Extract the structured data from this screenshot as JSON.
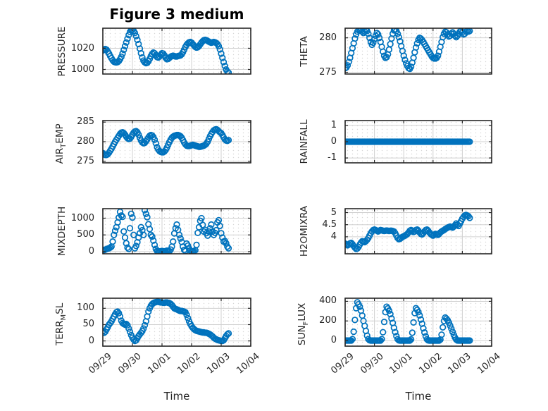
{
  "figure": {
    "title": "Figure 3 medium",
    "xlabel": "Time",
    "marker": "circle",
    "marker_color": "#0072BD",
    "axes_color": "#262626",
    "grid_color": "#d0d0d0",
    "minor_dot_color": "#d7d7d7",
    "background": "#ffffff"
  },
  "time_axis": {
    "lim_hours": [
      0,
      120
    ],
    "tick_hours": [
      0,
      24,
      48,
      72,
      96,
      120
    ],
    "tick_labels": [
      "09/29",
      "09/30",
      "10/01",
      "10/02",
      "10/03",
      "10/04"
    ]
  },
  "chart_data": [
    {
      "id": "pressure",
      "type": "scatter",
      "grid_position": [
        0,
        0
      ],
      "ylabel": "PRESSURE",
      "ylabel_parts": [
        {
          "text": "PRESSURE"
        }
      ],
      "ylim": [
        995.7,
        1039
      ],
      "yticks": [
        {
          "v": 1000,
          "label": "1000"
        },
        {
          "v": 1020,
          "label": "1020"
        }
      ],
      "t_start_hours": 0,
      "t_step_hours": 1,
      "show_x_labels": false,
      "values": [
        1018,
        1018.7,
        1019.3,
        1018.7,
        1017,
        1015,
        1012.7,
        1010.7,
        1008.7,
        1007.3,
        1006.8,
        1006.7,
        1007,
        1008,
        1009.7,
        1012,
        1015,
        1018.5,
        1022,
        1025.5,
        1029,
        1032.5,
        1035.5,
        1037.3,
        1037.5,
        1036.5,
        1034.5,
        1031.5,
        1028,
        1024,
        1019.7,
        1015.3,
        1011.3,
        1008.3,
        1006.7,
        1006,
        1006.3,
        1007.7,
        1010,
        1012.7,
        1014.7,
        1016,
        1015.3,
        1013.3,
        1011.7,
        1011.3,
        1012.3,
        1014,
        1015.3,
        1015,
        1013.3,
        1011,
        1009.7,
        1010,
        1011,
        1012,
        1012.7,
        1013,
        1012.7,
        1012.3,
        1012.3,
        1012.7,
        1013,
        1013.3,
        1014.3,
        1016.3,
        1018.7,
        1021.3,
        1023.3,
        1024.7,
        1025.7,
        1026,
        1025.3,
        1024,
        1022.7,
        1021.3,
        1020.7,
        1021,
        1022,
        1023.7,
        1025.3,
        1026.7,
        1027.7,
        1028,
        1027.7,
        1027,
        1026.3,
        1025.7,
        1025.3,
        1025.7,
        1026,
        1025.7,
        1025,
        1024,
        1022,
        1019,
        1015,
        1011,
        1007,
        1003.3,
        1000,
        998,
        997
      ]
    },
    {
      "id": "theta",
      "type": "scatter",
      "grid_position": [
        0,
        1
      ],
      "ylabel": "THETA",
      "ylabel_parts": [
        {
          "text": "THETA"
        }
      ],
      "ylim": [
        274.75,
        281.4
      ],
      "yticks": [
        {
          "v": 275,
          "label": "275"
        },
        {
          "v": 280,
          "label": "280"
        }
      ],
      "t_start_hours": 0,
      "t_step_hours": 1,
      "show_x_labels": false,
      "values": [
        275.6,
        275.7,
        276,
        276.5,
        277.1,
        277.8,
        278.5,
        279.2,
        279.9,
        280.5,
        280.9,
        281.1,
        281.2,
        281.1,
        280.9,
        280.7,
        280.9,
        281.1,
        281,
        280.6,
        280,
        279.4,
        279,
        279.3,
        279.8,
        280.3,
        280.7,
        280.5,
        280,
        279.4,
        278.7,
        278,
        277.4,
        277.1,
        277.2,
        277.6,
        278.3,
        279.1,
        279.9,
        280.6,
        281.1,
        281.2,
        281,
        280.6,
        280.1,
        279.5,
        278.8,
        278.1,
        277.4,
        276.8,
        276.3,
        275.9,
        275.6,
        275.5,
        275.8,
        276.4,
        277.1,
        277.9,
        278.6,
        279.2,
        279.7,
        280,
        279.9,
        279.7,
        279.4,
        279.1,
        278.8,
        278.5,
        278.2,
        277.9,
        277.6,
        277.3,
        277.1,
        277,
        277,
        277.1,
        277.4,
        278,
        278.7,
        279.4,
        280.1,
        280.6,
        280.9,
        280.8,
        280.5,
        280.2,
        280.3,
        280.6,
        280.8,
        280.6,
        280.3,
        280.1,
        280.3,
        280.6,
        280.9,
        281,
        280.8,
        280.5,
        280.6,
        280.9,
        281,
        280.9,
        281
      ]
    },
    {
      "id": "air-temp",
      "type": "scatter",
      "grid_position": [
        1,
        0
      ],
      "ylabel": "AIR_TEMP",
      "ylabel_parts": [
        {
          "text": "AIR"
        },
        {
          "sub": "T"
        },
        {
          "text": "EMP"
        }
      ],
      "ylim": [
        274.6,
        285.4
      ],
      "yticks": [
        {
          "v": 275,
          "label": "275"
        },
        {
          "v": 280,
          "label": "280"
        },
        {
          "v": 285,
          "label": "285"
        }
      ],
      "t_start_hours": 0,
      "t_step_hours": 1,
      "show_x_labels": false,
      "values": [
        277.1,
        276.8,
        276.6,
        276.6,
        276.8,
        277.2,
        277.7,
        278.2,
        278.8,
        279.4,
        280,
        280.5,
        281,
        281.5,
        282,
        282.3,
        282.4,
        282.2,
        281.8,
        281.3,
        280.9,
        280.7,
        280.8,
        281.2,
        281.8,
        282.3,
        282.6,
        282.7,
        282.4,
        281.8,
        281,
        280.3,
        279.8,
        279.6,
        279.7,
        280.1,
        280.6,
        281.1,
        281.5,
        281.7,
        281.6,
        281.2,
        280.5,
        279.6,
        278.6,
        278,
        277.6,
        277.4,
        277.3,
        277.3,
        277.5,
        277.9,
        278.5,
        279.2,
        279.9,
        280.5,
        281,
        281.3,
        281.5,
        281.6,
        281.7,
        281.7,
        281.6,
        281.4,
        281,
        280.4,
        279.8,
        279.3,
        279,
        278.9,
        278.9,
        279,
        279.1,
        279.2,
        279.1,
        279,
        278.9,
        278.8,
        278.7,
        278.7,
        278.8,
        278.9,
        279,
        279.2,
        279.5,
        280,
        280.7,
        281.4,
        282,
        282.5,
        282.9,
        283.1,
        283.2,
        283,
        282.7,
        282.4,
        282.2,
        281.7,
        281.1,
        280.6,
        280.3,
        280.2,
        280.4
      ]
    },
    {
      "id": "rainfall",
      "type": "scatter",
      "grid_position": [
        1,
        1
      ],
      "ylabel": "RAINFALL",
      "ylabel_parts": [
        {
          "text": "RAINFALL"
        }
      ],
      "ylim": [
        -1.3,
        1.3
      ],
      "yticks": [
        {
          "v": -1,
          "label": "-1"
        },
        {
          "v": 0,
          "label": "0"
        },
        {
          "v": 1,
          "label": "1"
        }
      ],
      "t_start_hours": 0,
      "t_step_hours": 1,
      "show_x_labels": false,
      "values_constant": 0,
      "n_points": 103
    },
    {
      "id": "mixdepth",
      "type": "scatter",
      "grid_position": [
        2,
        0
      ],
      "ylabel": "MIXDEPTH",
      "ylabel_parts": [
        {
          "text": "MIXDEPTH"
        }
      ],
      "ylim": [
        -65,
        1285
      ],
      "yticks": [
        {
          "v": 0,
          "label": "0"
        },
        {
          "v": 500,
          "label": "500"
        },
        {
          "v": 1000,
          "label": "1000"
        }
      ],
      "t_start_hours": 0,
      "t_step_hours": 1,
      "show_x_labels": false,
      "values": [
        30,
        50,
        60,
        75,
        90,
        100,
        120,
        150,
        300,
        500,
        625,
        730,
        875,
        1020,
        1190,
        1080,
        1040,
        604,
        420,
        250,
        120,
        80,
        700,
        1130,
        1020,
        500,
        100,
        170,
        280,
        420,
        550,
        730,
        640,
        500,
        1240,
        1130,
        1030,
        820,
        675,
        500,
        450,
        330,
        200,
        80,
        20,
        10,
        5,
        10,
        20,
        10,
        5,
        15,
        30,
        20,
        10,
        60,
        150,
        300,
        545,
        700,
        810,
        650,
        500,
        395,
        290,
        150,
        50,
        20,
        240,
        180,
        90,
        30,
        10,
        5,
        15,
        40,
        200,
        560,
        730,
        920,
        1000,
        800,
        600,
        650,
        550,
        480,
        600,
        700,
        810,
        600,
        500,
        560,
        640,
        875,
        940,
        770,
        550,
        420,
        300,
        320,
        250,
        150,
        100
      ]
    },
    {
      "id": "h2omixra",
      "type": "scatter",
      "grid_position": [
        2,
        1
      ],
      "ylabel": "H2OMIXRA",
      "ylabel_parts": [
        {
          "text": "H2OMIXRA"
        }
      ],
      "ylim": [
        3.3,
        5.16
      ],
      "yticks": [
        {
          "v": 4,
          "label": "4"
        },
        {
          "v": 4.5,
          "label": "4.5"
        },
        {
          "v": 5,
          "label": "5"
        }
      ],
      "t_start_hours": 0,
      "t_step_hours": 1,
      "show_x_labels": false,
      "values": [
        3.72,
        3.68,
        3.65,
        3.68,
        3.73,
        3.75,
        3.7,
        3.62,
        3.55,
        3.5,
        3.52,
        3.58,
        3.68,
        3.76,
        3.82,
        3.8,
        3.78,
        3.82,
        3.88,
        3.95,
        4.05,
        4.15,
        4.22,
        4.28,
        4.3,
        4.28,
        4.25,
        4.22,
        4.25,
        4.28,
        4.27,
        4.25,
        4.24,
        4.25,
        4.26,
        4.25,
        4.24,
        4.25,
        4.25,
        4.24,
        4.22,
        4.15,
        4.05,
        3.95,
        3.9,
        3.92,
        3.96,
        4,
        4.02,
        4.05,
        4.08,
        4.12,
        4.18,
        4.25,
        4.28,
        4.25,
        4.2,
        4.22,
        4.28,
        4.3,
        4.25,
        4.18,
        4.12,
        4.1,
        4.15,
        4.22,
        4.28,
        4.3,
        4.25,
        4.18,
        4.12,
        4.08,
        4.05,
        4.08,
        4.12,
        4.1,
        4.08,
        4.12,
        4.18,
        4.22,
        4.25,
        4.28,
        4.32,
        4.35,
        4.38,
        4.4,
        4.42,
        4.4,
        4.38,
        4.42,
        4.48,
        4.55,
        4.5,
        4.45,
        4.55,
        4.65,
        4.75,
        4.82,
        4.88,
        4.9,
        4.88,
        4.85,
        4.78
      ]
    },
    {
      "id": "terr-msl",
      "type": "scatter",
      "grid_position": [
        3,
        0
      ],
      "ylabel": "TERR_MSL",
      "ylabel_parts": [
        {
          "text": "TERR"
        },
        {
          "sub": "M"
        },
        {
          "text": "SL"
        }
      ],
      "ylim": [
        -16,
        131
      ],
      "yticks": [
        {
          "v": 0,
          "label": "0"
        },
        {
          "v": 50,
          "label": "50"
        },
        {
          "v": 100,
          "label": "100"
        }
      ],
      "t_start_hours": 0,
      "t_step_hours": 1,
      "show_x_labels": true,
      "values": [
        30,
        25,
        28,
        35,
        42,
        50,
        55,
        60,
        68,
        75,
        82,
        88,
        90,
        85,
        75,
        62,
        55,
        52,
        50,
        52,
        48,
        38,
        28,
        18,
        10,
        4,
        0,
        2,
        8,
        15,
        20,
        25,
        30,
        38,
        48,
        60,
        75,
        90,
        100,
        108,
        113,
        116,
        118,
        119,
        120,
        120,
        119,
        118,
        118,
        117,
        117,
        118,
        118,
        117,
        116,
        114,
        110,
        105,
        100,
        98,
        97,
        95,
        93,
        92,
        92,
        91,
        90,
        88,
        80,
        70,
        60,
        52,
        45,
        40,
        36,
        33,
        31,
        30,
        29,
        28,
        27,
        26,
        26,
        25,
        25,
        24,
        22,
        20,
        17,
        14,
        10,
        7,
        5,
        3,
        2,
        1,
        0,
        0,
        2,
        8,
        15,
        20,
        23
      ]
    },
    {
      "id": "sun-flux",
      "type": "scatter",
      "grid_position": [
        3,
        1
      ],
      "ylabel": "SUN_FLUX",
      "ylabel_parts": [
        {
          "text": "SUN"
        },
        {
          "sub": "F"
        },
        {
          "text": "LUX"
        }
      ],
      "ylim": [
        -57,
        432
      ],
      "yticks": [
        {
          "v": 0,
          "label": "0"
        },
        {
          "v": 200,
          "label": "200"
        },
        {
          "v": 400,
          "label": "400"
        }
      ],
      "t_start_hours": 0,
      "t_step_hours": 1,
      "show_x_labels": true,
      "values": [
        0,
        0,
        0,
        0,
        0,
        0,
        15,
        90,
        210,
        330,
        390,
        370,
        345,
        305,
        255,
        200,
        150,
        98,
        50,
        15,
        3,
        0,
        0,
        0,
        0,
        0,
        0,
        0,
        0,
        0,
        15,
        85,
        190,
        290,
        345,
        328,
        305,
        270,
        225,
        180,
        130,
        86,
        45,
        14,
        2,
        0,
        0,
        0,
        0,
        0,
        0,
        0,
        0,
        0,
        12,
        80,
        185,
        280,
        330,
        313,
        290,
        257,
        215,
        172,
        125,
        82,
        43,
        13,
        2,
        0,
        0,
        0,
        0,
        0,
        0,
        0,
        0,
        0,
        10,
        60,
        135,
        200,
        235,
        223,
        207,
        183,
        153,
        122,
        89,
        58,
        31,
        10,
        1,
        0,
        0,
        0,
        0,
        0,
        0,
        0,
        0,
        0,
        0
      ]
    }
  ]
}
